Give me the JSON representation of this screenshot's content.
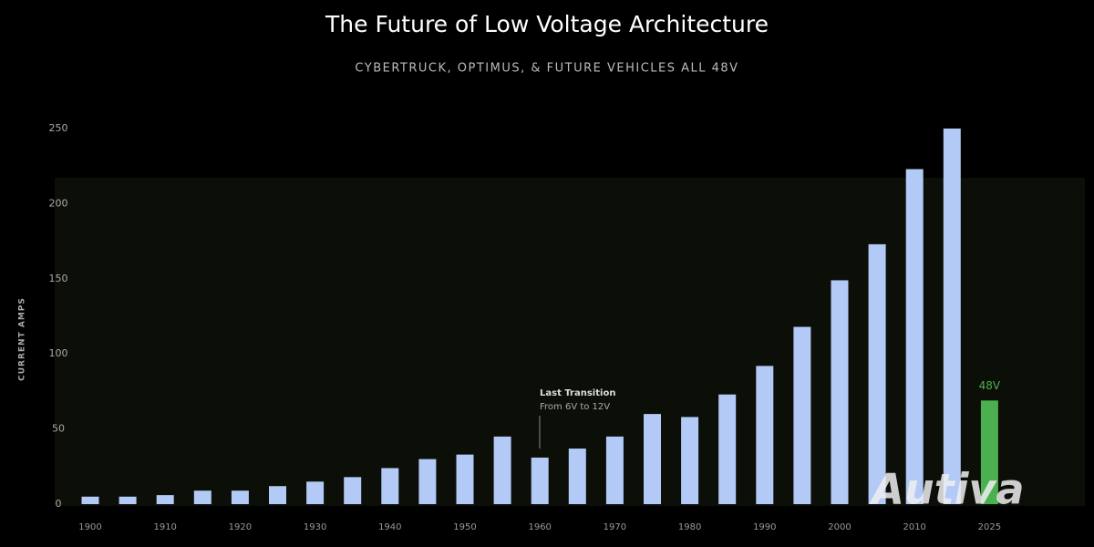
{
  "chart_data": {
    "type": "bar",
    "title": "The Future of Low Voltage Architecture",
    "subtitle": "CYBERTRUCK, OPTIMUS, & FUTURE VEHICLES ALL 48V",
    "y_label": "CURRENT AMPS",
    "categories": [
      "1900",
      null,
      "1910",
      null,
      "1920",
      null,
      "1930",
      null,
      "1940",
      null,
      "1950",
      null,
      "1960",
      null,
      "1970",
      null,
      "1980",
      null,
      "1990",
      null,
      "2000",
      null,
      "2010",
      null,
      "2025"
    ],
    "series": [
      {
        "name": "Current",
        "color": "#b3c9f6",
        "values": [
          5,
          5,
          6,
          9,
          9,
          12,
          15,
          18,
          24,
          30,
          33,
          45,
          31,
          37,
          45,
          60,
          58,
          73,
          92,
          118,
          149,
          173,
          223,
          250,
          null
        ]
      },
      {
        "name": "48V",
        "color": "#4caf50",
        "values": [
          null,
          null,
          null,
          null,
          null,
          null,
          null,
          null,
          null,
          null,
          null,
          null,
          null,
          null,
          null,
          null,
          null,
          null,
          null,
          null,
          null,
          null,
          null,
          null,
          69
        ]
      }
    ],
    "annotation": {
      "title": "Last Transition",
      "text": "From 6V to 12V"
    },
    "watermark": "Autiva",
    "ylim": [
      0,
      250
    ],
    "yticks": [
      0,
      50,
      100,
      150,
      200,
      250
    ],
    "grid": false
  }
}
